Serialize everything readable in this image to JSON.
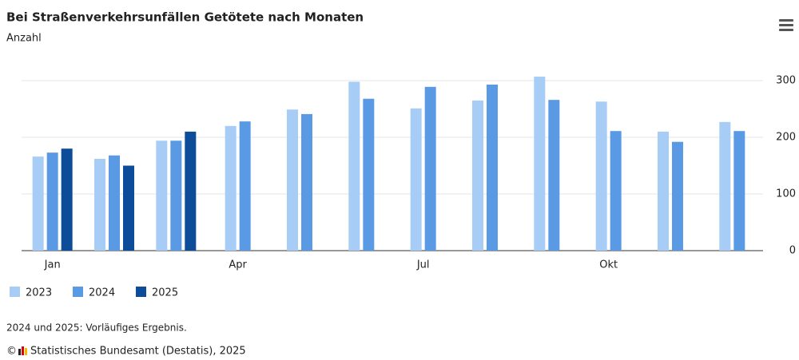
{
  "chart_data": {
    "type": "bar",
    "title": "Bei Straßenverkehrsunfällen Getötete nach Monaten",
    "subtitle": "Anzahl",
    "categories": [
      "Jan",
      null,
      null,
      "Apr",
      null,
      null,
      "Jul",
      null,
      null,
      "Okt",
      null,
      null
    ],
    "series": [
      {
        "name": "2023",
        "color": "#a7cdf7",
        "values": [
          166,
          162,
          194,
          220,
          249,
          298,
          251,
          265,
          307,
          263,
          210,
          227
        ]
      },
      {
        "name": "2024",
        "color": "#5a9ae5",
        "values": [
          173,
          168,
          194,
          228,
          241,
          268,
          289,
          293,
          266,
          211,
          192,
          211
        ]
      },
      {
        "name": "2025",
        "color": "#0c4c98",
        "values": [
          180,
          150,
          210,
          null,
          null,
          null,
          null,
          null,
          null,
          null,
          null,
          null
        ]
      }
    ],
    "ylim": [
      0,
      300
    ],
    "yticks": [
      0,
      100,
      200,
      300
    ],
    "grid": true,
    "note": "2024 und 2025: Vorläufiges Ergebnis.",
    "source": "Statistisches Bundesamt (Destatis), 2025"
  }
}
